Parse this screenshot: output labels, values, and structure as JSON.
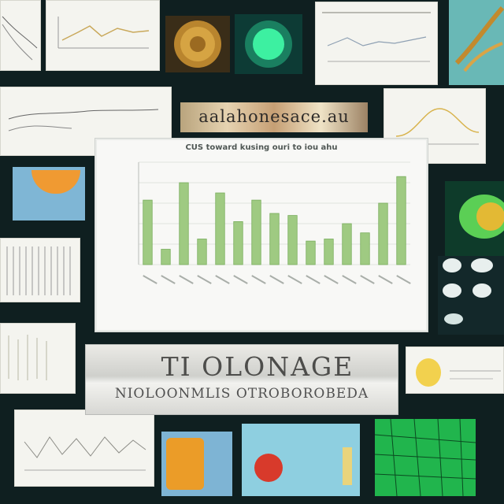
{
  "chart_data": {
    "type": "bar",
    "title": "CUS toward kusing ouri to iou ahu",
    "categories": [
      "1",
      "2",
      "3",
      "4",
      "5",
      "6",
      "7",
      "8",
      "9",
      "10",
      "11",
      "12",
      "13",
      "14",
      "15"
    ],
    "values": [
      63,
      15,
      80,
      25,
      70,
      42,
      63,
      50,
      48,
      23,
      25,
      40,
      31,
      60,
      86
    ],
    "ylim": [
      0,
      100
    ],
    "grid": true,
    "legend": "none"
  },
  "banner": {
    "title": "TI OLONAGE",
    "subtitle": "NIOLOONMLIS OTROBOROBEDA"
  },
  "strip": {
    "text": "aalahonesace.au"
  },
  "colors": {
    "background": "#0f1f20",
    "bar": "#9fca82",
    "bar_edge": "#79ad5d",
    "accent_green": "#2fc26c"
  }
}
